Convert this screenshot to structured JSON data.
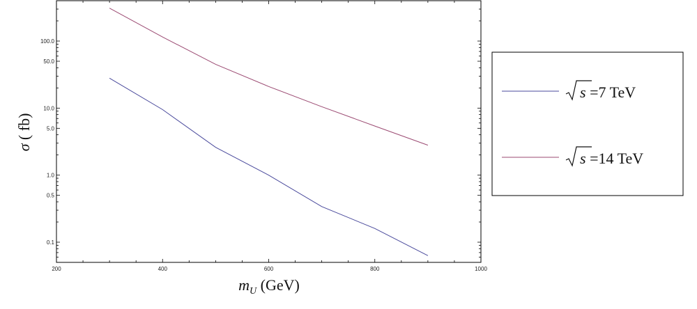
{
  "chart_data": {
    "type": "line",
    "title": "",
    "xlabel_main": "m",
    "xlabel_sub": "U",
    "xlabel_rest": " (GeV)",
    "ylabel_main": "σ",
    "ylabel_rest": " ( fb)",
    "x_scale": "linear",
    "y_scale": "log",
    "xlim": [
      200,
      1000
    ],
    "ylim": [
      0.05,
      400
    ],
    "x_ticks": [
      200,
      400,
      600,
      800,
      1000
    ],
    "y_ticks": [
      0.1,
      0.5,
      1.0,
      5.0,
      10.0,
      50.0,
      100.0
    ],
    "y_tick_labels": [
      "0.1",
      "0.5",
      "1.0",
      "5.0",
      "10.0",
      "50.0",
      "100.0"
    ],
    "legend_position": "right",
    "series": [
      {
        "name_rad": "s",
        "name_rest": " =7 TeV",
        "color": "#4a4a9c",
        "x": [
          300,
          400,
          500,
          600,
          700,
          800,
          900
        ],
        "y": [
          28,
          9.5,
          2.6,
          1.0,
          0.34,
          0.16,
          0.063
        ]
      },
      {
        "name_rad": "s",
        "name_rest": " =14 TeV",
        "color": "#9b4a72",
        "x": [
          300,
          400,
          500,
          600,
          700,
          800,
          900
        ],
        "y": [
          310,
          115,
          45,
          21,
          10.5,
          5.4,
          2.8
        ]
      }
    ]
  }
}
